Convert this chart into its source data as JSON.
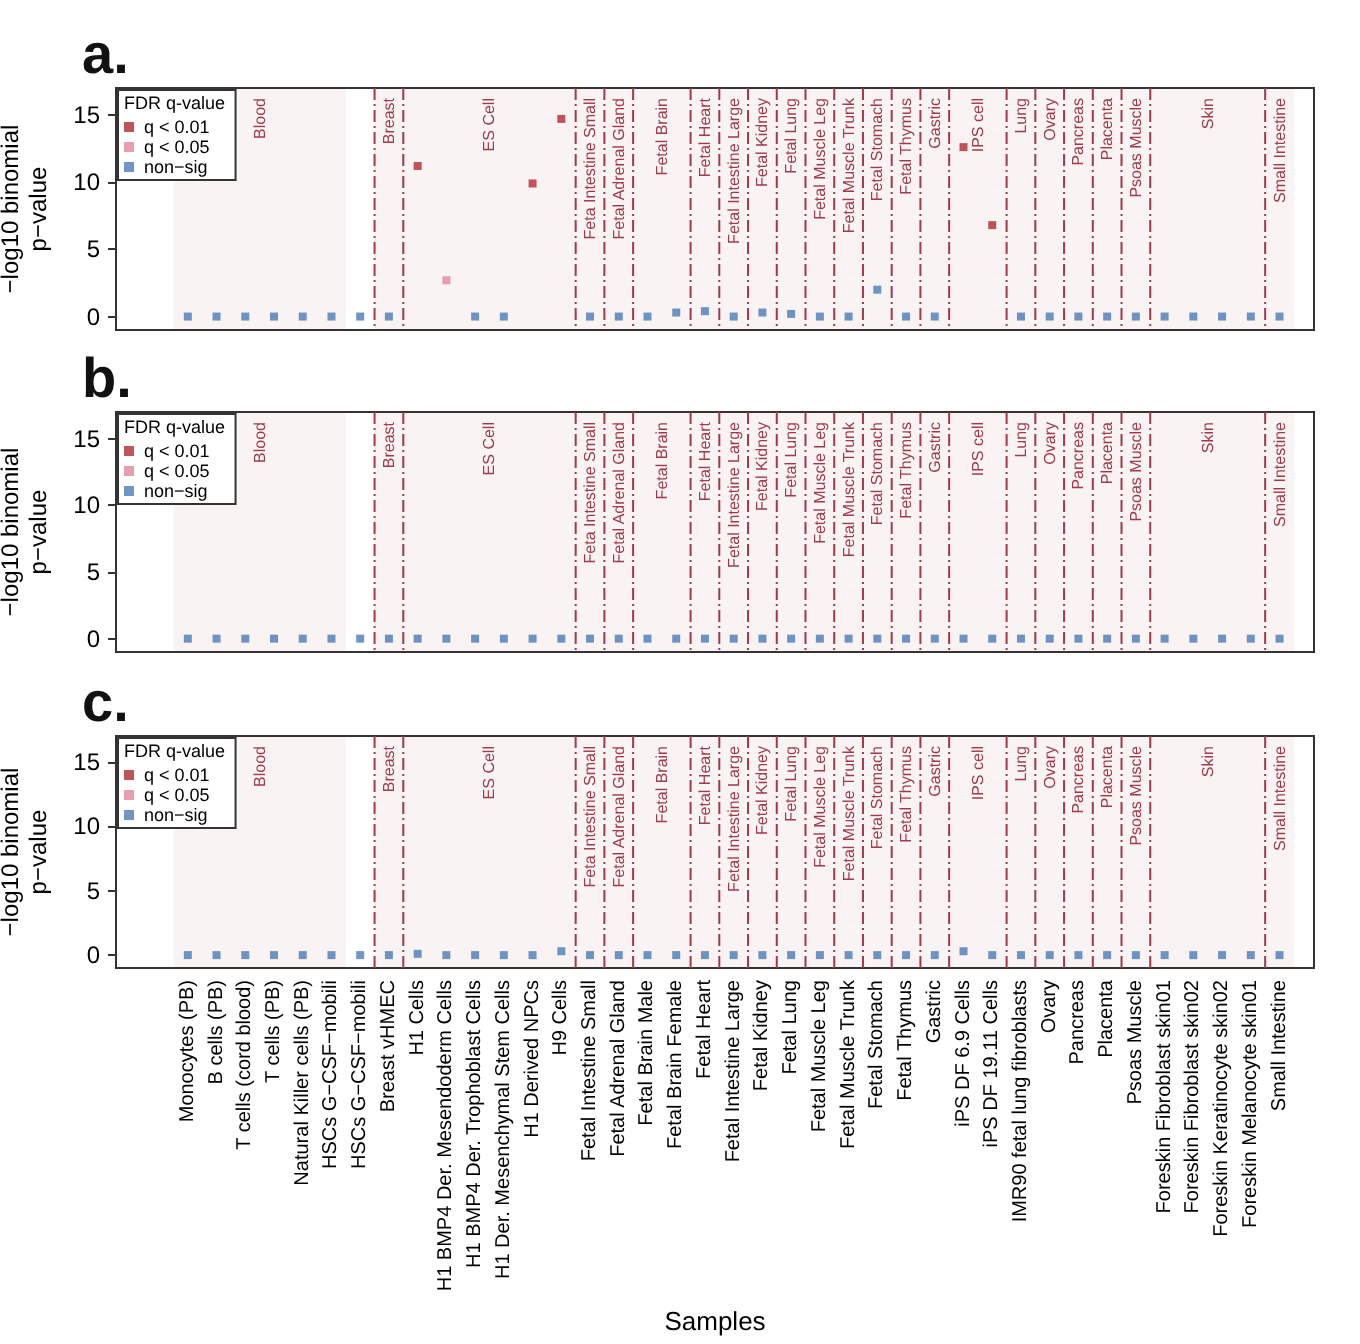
{
  "chart_data": [
    {
      "type": "scatter",
      "title": "a.",
      "ylabel": "−log10 binomial\np−value",
      "legend_title": "FDR q-value",
      "categories": [
        "Monocytes (PB)",
        "B cells (PB)",
        "T cells (cord blood)",
        "T cells (PB)",
        "Natural Killer cells (PB)",
        "HSCs G−CSF−mobili",
        "HSCs G−CSF−mobili",
        "Breast vHMEC",
        "H1 Cells",
        "H1 BMP4 Der. Mesendoderm Cells",
        "H1 BMP4 Der. Trophoblast Cells",
        "H1 Der. Mesenchymal Stem Cells",
        "H1 Derived NPCs",
        "H9 Cells",
        "Fetal Intestine Small",
        "Fetal Adrenal Gland",
        "Fetal Brain Male",
        "Fetal Brain Female",
        "Fetal Heart",
        "Fetal Intestine Large",
        "Fetal Kidney",
        "Fetal Lung",
        "Fetal Muscle Leg",
        "Fetal Muscle Trunk",
        "Fetal Stomach",
        "Fetal Thymus",
        "Gastric",
        "iPS DF 6.9 Cells",
        "iPS DF 19.11 Cells",
        "IMR90 fetal lung fibroblasts",
        "Ovary",
        "Pancreas",
        "Placenta",
        "Psoas Muscle",
        "Foreskin Fibroblast skin01",
        "Foreskin Fibroblast skin02",
        "Foreskin Keratinocyte skin02",
        "Foreskin Melanocyte skin01",
        "Small Intestine"
      ],
      "series": [
        {
          "name": "q < 0.01",
          "color": "#b02a30",
          "values": [
            null,
            null,
            null,
            null,
            null,
            null,
            null,
            null,
            11.2,
            null,
            null,
            null,
            9.9,
            14.7,
            null,
            null,
            null,
            null,
            null,
            null,
            null,
            null,
            null,
            null,
            null,
            null,
            null,
            12.6,
            6.8,
            null,
            null,
            null,
            null,
            null,
            null,
            null,
            null,
            null,
            null
          ]
        },
        {
          "name": "q < 0.05",
          "color": "#e0879b",
          "values": [
            null,
            null,
            null,
            null,
            null,
            null,
            null,
            null,
            null,
            2.7,
            null,
            null,
            null,
            null,
            null,
            null,
            null,
            null,
            null,
            null,
            null,
            null,
            null,
            null,
            null,
            null,
            null,
            null,
            null,
            null,
            null,
            null,
            null,
            null,
            null,
            null,
            null,
            null,
            null
          ]
        },
        {
          "name": "non−sig",
          "color": "#4a7ab5",
          "values": [
            0,
            0,
            0,
            0,
            0,
            0,
            0,
            0,
            null,
            null,
            0,
            0,
            null,
            null,
            0,
            0,
            0,
            0.3,
            0.4,
            0,
            0.3,
            0.2,
            0,
            0,
            2.0,
            0,
            0,
            null,
            null,
            0,
            0,
            0,
            0,
            0,
            0,
            0,
            0,
            0,
            0
          ]
        }
      ],
      "bands": [
        {
          "axis": "x",
          "from": "Monocytes (PB)",
          "to": "HSCs G−CSF−mobili",
          "label": "Blood",
          "color": "#9e3a4a"
        },
        {
          "axis": "x",
          "from": "Breast vHMEC",
          "to": "Breast vHMEC",
          "label": "Breast",
          "color": "#9e3a4a"
        },
        {
          "axis": "x",
          "from": "H1 Cells",
          "to": "H9 Cells",
          "label": "ES Cell",
          "color": "#9e3a4a"
        },
        {
          "axis": "x",
          "from": "Fetal Intestine Small",
          "to": "Fetal Intestine Small",
          "label": "Feta Intestine Small",
          "color": "#9e3a4a"
        },
        {
          "axis": "x",
          "from": "Fetal Adrenal Gland",
          "to": "Fetal Adrenal Gland",
          "label": "Fetal Adrenal Gland",
          "color": "#9e3a4a"
        },
        {
          "axis": "x",
          "from": "Fetal Brain Male",
          "to": "Fetal Brain Female",
          "label": "Fetal Brain",
          "color": "#9e3a4a"
        },
        {
          "axis": "x",
          "from": "Fetal Heart",
          "to": "Fetal Heart",
          "label": "Fetal Heart",
          "color": "#9e3a4a"
        },
        {
          "axis": "x",
          "from": "Fetal Intestine Large",
          "to": "Fetal Intestine Large",
          "label": "Fetal Intestine Large",
          "color": "#9e3a4a"
        },
        {
          "axis": "x",
          "from": "Fetal Kidney",
          "to": "Fetal Kidney",
          "label": "Fetal Kidney",
          "color": "#9e3a4a"
        },
        {
          "axis": "x",
          "from": "Fetal Lung",
          "to": "Fetal Lung",
          "label": "Fetal Lung",
          "color": "#9e3a4a"
        },
        {
          "axis": "x",
          "from": "Fetal Muscle Leg",
          "to": "Fetal Muscle Leg",
          "label": "Fetal Muscle Leg",
          "color": "#9e3a4a"
        },
        {
          "axis": "x",
          "from": "Fetal Muscle Trunk",
          "to": "Fetal Muscle Trunk",
          "label": "Fetal Muscle Trunk",
          "color": "#9e3a4a"
        },
        {
          "axis": "x",
          "from": "Fetal Stomach",
          "to": "Fetal Stomach",
          "label": "Fetal Stomach",
          "color": "#9e3a4a"
        },
        {
          "axis": "x",
          "from": "Fetal Thymus",
          "to": "Fetal Thymus",
          "label": "Fetal Thymus",
          "color": "#9e3a4a"
        },
        {
          "axis": "x",
          "from": "Gastric",
          "to": "Gastric",
          "label": "Gastric",
          "color": "#9e3a4a"
        },
        {
          "axis": "x",
          "from": "iPS DF 6.9 Cells",
          "to": "iPS DF 19.11 Cells",
          "label": "IPS cell",
          "color": "#9e3a4a"
        },
        {
          "axis": "x",
          "from": "IMR90 fetal lung fibroblasts",
          "to": "IMR90 fetal lung fibroblasts",
          "label": "Lung",
          "color": "#9e3a4a"
        },
        {
          "axis": "x",
          "from": "Ovary",
          "to": "Ovary",
          "label": "Ovary",
          "color": "#9e3a4a"
        },
        {
          "axis": "x",
          "from": "Pancreas",
          "to": "Pancreas",
          "label": "Pancreas",
          "color": "#9e3a4a"
        },
        {
          "axis": "x",
          "from": "Placenta",
          "to": "Placenta",
          "label": "Placenta",
          "color": "#9e3a4a"
        },
        {
          "axis": "x",
          "from": "Psoas Muscle",
          "to": "Psoas Muscle",
          "label": "Psoas Muscle",
          "color": "#9e3a4a"
        },
        {
          "axis": "x",
          "from": "Foreskin Fibroblast skin01",
          "to": "Foreskin Melanocyte skin01",
          "label": "Skin",
          "color": "#9e3a4a"
        },
        {
          "axis": "x",
          "from": "Small Intestine",
          "to": "Small Intestine",
          "label": "Small Intestine",
          "color": "#9e3a4a"
        }
      ],
      "ylim": [
        -1,
        17
      ],
      "yticks": [
        0,
        5,
        10,
        15
      ],
      "legend": "top left",
      "marker": "square",
      "tick_labels": "y"
    },
    {
      "type": "scatter",
      "title": "b.",
      "ylabel": "−log10 binomial\np−value",
      "legend_title": "FDR q-value",
      "categories": [
        "Monocytes (PB)",
        "B cells (PB)",
        "T cells (cord blood)",
        "T cells (PB)",
        "Natural Killer cells (PB)",
        "HSCs G−CSF−mobili",
        "HSCs G−CSF−mobili",
        "Breast vHMEC",
        "H1 Cells",
        "H1 BMP4 Der. Mesendoderm Cells",
        "H1 BMP4 Der. Trophoblast Cells",
        "H1 Der. Mesenchymal Stem Cells",
        "H1 Derived NPCs",
        "H9 Cells",
        "Fetal Intestine Small",
        "Fetal Adrenal Gland",
        "Fetal Brain Male",
        "Fetal Brain Female",
        "Fetal Heart",
        "Fetal Intestine Large",
        "Fetal Kidney",
        "Fetal Lung",
        "Fetal Muscle Leg",
        "Fetal Muscle Trunk",
        "Fetal Stomach",
        "Fetal Thymus",
        "Gastric",
        "iPS DF 6.9 Cells",
        "iPS DF 19.11 Cells",
        "IMR90 fetal lung fibroblasts",
        "Ovary",
        "Pancreas",
        "Placenta",
        "Psoas Muscle",
        "Foreskin Fibroblast skin01",
        "Foreskin Fibroblast skin02",
        "Foreskin Keratinocyte skin02",
        "Foreskin Melanocyte skin01",
        "Small Intestine"
      ],
      "series": [
        {
          "name": "q < 0.01",
          "color": "#b02a30",
          "values": [
            null,
            null,
            null,
            null,
            null,
            null,
            null,
            null,
            null,
            null,
            null,
            null,
            null,
            null,
            null,
            null,
            null,
            null,
            null,
            null,
            null,
            null,
            null,
            null,
            null,
            null,
            null,
            null,
            null,
            null,
            null,
            null,
            null,
            null,
            null,
            null,
            null,
            null,
            null
          ]
        },
        {
          "name": "q < 0.05",
          "color": "#e0879b",
          "values": [
            null,
            null,
            null,
            null,
            null,
            null,
            null,
            null,
            null,
            null,
            null,
            null,
            null,
            null,
            null,
            null,
            null,
            null,
            null,
            null,
            null,
            null,
            null,
            null,
            null,
            null,
            null,
            null,
            null,
            null,
            null,
            null,
            null,
            null,
            null,
            null,
            null,
            null,
            null
          ]
        },
        {
          "name": "non−sig",
          "color": "#4a7ab5",
          "values": [
            0,
            0,
            0,
            0,
            0,
            0,
            0,
            0,
            0,
            0,
            0,
            0,
            0,
            0,
            0,
            0,
            0,
            0,
            0,
            0,
            0,
            0,
            0,
            0,
            0,
            0,
            0,
            0,
            0,
            0,
            0,
            0,
            0,
            0,
            0,
            0,
            0,
            0,
            0
          ]
        }
      ],
      "bands": [
        {
          "axis": "x",
          "from": "Monocytes (PB)",
          "to": "HSCs G−CSF−mobili",
          "label": "Blood",
          "color": "#9e3a4a"
        },
        {
          "axis": "x",
          "from": "Breast vHMEC",
          "to": "Breast vHMEC",
          "label": "Breast",
          "color": "#9e3a4a"
        },
        {
          "axis": "x",
          "from": "H1 Cells",
          "to": "H9 Cells",
          "label": "ES Cell",
          "color": "#9e3a4a"
        },
        {
          "axis": "x",
          "from": "Fetal Intestine Small",
          "to": "Fetal Intestine Small",
          "label": "Feta Intestine Small",
          "color": "#9e3a4a"
        },
        {
          "axis": "x",
          "from": "Fetal Adrenal Gland",
          "to": "Fetal Adrenal Gland",
          "label": "Fetal Adrenal Gland",
          "color": "#9e3a4a"
        },
        {
          "axis": "x",
          "from": "Fetal Brain Male",
          "to": "Fetal Brain Female",
          "label": "Fetal Brain",
          "color": "#9e3a4a"
        },
        {
          "axis": "x",
          "from": "Fetal Heart",
          "to": "Fetal Heart",
          "label": "Fetal Heart",
          "color": "#9e3a4a"
        },
        {
          "axis": "x",
          "from": "Fetal Intestine Large",
          "to": "Fetal Intestine Large",
          "label": "Fetal Intestine Large",
          "color": "#9e3a4a"
        },
        {
          "axis": "x",
          "from": "Fetal Kidney",
          "to": "Fetal Kidney",
          "label": "Fetal Kidney",
          "color": "#9e3a4a"
        },
        {
          "axis": "x",
          "from": "Fetal Lung",
          "to": "Fetal Lung",
          "label": "Fetal Lung",
          "color": "#9e3a4a"
        },
        {
          "axis": "x",
          "from": "Fetal Muscle Leg",
          "to": "Fetal Muscle Leg",
          "label": "Fetal Muscle Leg",
          "color": "#9e3a4a"
        },
        {
          "axis": "x",
          "from": "Fetal Muscle Trunk",
          "to": "Fetal Muscle Trunk",
          "label": "Fetal Muscle Trunk",
          "color": "#9e3a4a"
        },
        {
          "axis": "x",
          "from": "Fetal Stomach",
          "to": "Fetal Stomach",
          "label": "Fetal Stomach",
          "color": "#9e3a4a"
        },
        {
          "axis": "x",
          "from": "Fetal Thymus",
          "to": "Fetal Thymus",
          "label": "Fetal Thymus",
          "color": "#9e3a4a"
        },
        {
          "axis": "x",
          "from": "Gastric",
          "to": "Gastric",
          "label": "Gastric",
          "color": "#9e3a4a"
        },
        {
          "axis": "x",
          "from": "iPS DF 6.9 Cells",
          "to": "iPS DF 19.11 Cells",
          "label": "IPS cell",
          "color": "#9e3a4a"
        },
        {
          "axis": "x",
          "from": "IMR90 fetal lung fibroblasts",
          "to": "IMR90 fetal lung fibroblasts",
          "label": "Lung",
          "color": "#9e3a4a"
        },
        {
          "axis": "x",
          "from": "Ovary",
          "to": "Ovary",
          "label": "Ovary",
          "color": "#9e3a4a"
        },
        {
          "axis": "x",
          "from": "Pancreas",
          "to": "Pancreas",
          "label": "Pancreas",
          "color": "#9e3a4a"
        },
        {
          "axis": "x",
          "from": "Placenta",
          "to": "Placenta",
          "label": "Placenta",
          "color": "#9e3a4a"
        },
        {
          "axis": "x",
          "from": "Psoas Muscle",
          "to": "Psoas Muscle",
          "label": "Psoas Muscle",
          "color": "#9e3a4a"
        },
        {
          "axis": "x",
          "from": "Foreskin Fibroblast skin01",
          "to": "Foreskin Melanocyte skin01",
          "label": "Skin",
          "color": "#9e3a4a"
        },
        {
          "axis": "x",
          "from": "Small Intestine",
          "to": "Small Intestine",
          "label": "Small Intestine",
          "color": "#9e3a4a"
        }
      ],
      "ylim": [
        -1,
        17
      ],
      "yticks": [
        0,
        5,
        10,
        15
      ],
      "legend": "top left",
      "marker": "square",
      "tick_labels": "y"
    },
    {
      "type": "scatter",
      "title": "c.",
      "ylabel": "−log10 binomial\np−value",
      "xlabel": "Samples",
      "legend_title": "FDR q-value",
      "categories": [
        "Monocytes (PB)",
        "B cells (PB)",
        "T cells (cord blood)",
        "T cells (PB)",
        "Natural Killer cells (PB)",
        "HSCs G−CSF−mobili",
        "HSCs G−CSF−mobili",
        "Breast vHMEC",
        "H1 Cells",
        "H1 BMP4 Der. Mesendoderm Cells",
        "H1 BMP4 Der. Trophoblast Cells",
        "H1 Der. Mesenchymal Stem Cells",
        "H1 Derived NPCs",
        "H9 Cells",
        "Fetal Intestine Small",
        "Fetal Adrenal Gland",
        "Fetal Brain Male",
        "Fetal Brain Female",
        "Fetal Heart",
        "Fetal Intestine Large",
        "Fetal Kidney",
        "Fetal Lung",
        "Fetal Muscle Leg",
        "Fetal Muscle Trunk",
        "Fetal Stomach",
        "Fetal Thymus",
        "Gastric",
        "iPS DF 6.9 Cells",
        "iPS DF 19.11 Cells",
        "IMR90 fetal lung fibroblasts",
        "Ovary",
        "Pancreas",
        "Placenta",
        "Psoas Muscle",
        "Foreskin Fibroblast skin01",
        "Foreskin Fibroblast skin02",
        "Foreskin Keratinocyte skin02",
        "Foreskin Melanocyte skin01",
        "Small Intestine"
      ],
      "series": [
        {
          "name": "q < 0.01",
          "color": "#b02a30",
          "values": [
            null,
            null,
            null,
            null,
            null,
            null,
            null,
            null,
            null,
            null,
            null,
            null,
            null,
            null,
            null,
            null,
            null,
            null,
            null,
            null,
            null,
            null,
            null,
            null,
            null,
            null,
            null,
            null,
            null,
            null,
            null,
            null,
            null,
            null,
            null,
            null,
            null,
            null,
            null
          ]
        },
        {
          "name": "q < 0.05",
          "color": "#e0879b",
          "values": [
            null,
            null,
            null,
            null,
            null,
            null,
            null,
            null,
            null,
            null,
            null,
            null,
            null,
            null,
            null,
            null,
            null,
            null,
            null,
            null,
            null,
            null,
            null,
            null,
            null,
            null,
            null,
            null,
            null,
            null,
            null,
            null,
            null,
            null,
            null,
            null,
            null,
            null,
            null
          ]
        },
        {
          "name": "non−sig",
          "color": "#4a7ab5",
          "values": [
            0,
            0,
            0,
            0,
            0,
            0,
            0,
            0,
            0.1,
            0,
            0,
            0,
            0,
            0.3,
            0,
            0,
            0,
            0,
            0,
            0,
            0,
            0,
            0,
            0,
            0,
            0,
            0,
            0.3,
            0,
            0,
            0,
            0,
            0,
            0,
            0,
            0,
            0,
            0,
            0
          ]
        }
      ],
      "bands": [
        {
          "axis": "x",
          "from": "Monocytes (PB)",
          "to": "HSCs G−CSF−mobili",
          "label": "Blood",
          "color": "#9e3a4a"
        },
        {
          "axis": "x",
          "from": "Breast vHMEC",
          "to": "Breast vHMEC",
          "label": "Breast",
          "color": "#9e3a4a"
        },
        {
          "axis": "x",
          "from": "H1 Cells",
          "to": "H9 Cells",
          "label": "ES Cell",
          "color": "#9e3a4a"
        },
        {
          "axis": "x",
          "from": "Fetal Intestine Small",
          "to": "Fetal Intestine Small",
          "label": "Feta Intestine Small",
          "color": "#9e3a4a"
        },
        {
          "axis": "x",
          "from": "Fetal Adrenal Gland",
          "to": "Fetal Adrenal Gland",
          "label": "Fetal Adrenal Gland",
          "color": "#9e3a4a"
        },
        {
          "axis": "x",
          "from": "Fetal Brain Male",
          "to": "Fetal Brain Female",
          "label": "Fetal Brain",
          "color": "#9e3a4a"
        },
        {
          "axis": "x",
          "from": "Fetal Heart",
          "to": "Fetal Heart",
          "label": "Fetal Heart",
          "color": "#9e3a4a"
        },
        {
          "axis": "x",
          "from": "Fetal Intestine Large",
          "to": "Fetal Intestine Large",
          "label": "Fetal Intestine Large",
          "color": "#9e3a4a"
        },
        {
          "axis": "x",
          "from": "Fetal Kidney",
          "to": "Fetal Kidney",
          "label": "Fetal Kidney",
          "color": "#9e3a4a"
        },
        {
          "axis": "x",
          "from": "Fetal Lung",
          "to": "Fetal Lung",
          "label": "Fetal Lung",
          "color": "#9e3a4a"
        },
        {
          "axis": "x",
          "from": "Fetal Muscle Leg",
          "to": "Fetal Muscle Leg",
          "label": "Fetal Muscle Leg",
          "color": "#9e3a4a"
        },
        {
          "axis": "x",
          "from": "Fetal Muscle Trunk",
          "to": "Fetal Muscle Trunk",
          "label": "Fetal Muscle Trunk",
          "color": "#9e3a4a"
        },
        {
          "axis": "x",
          "from": "Fetal Stomach",
          "to": "Fetal Stomach",
          "label": "Fetal Stomach",
          "color": "#9e3a4a"
        },
        {
          "axis": "x",
          "from": "Fetal Thymus",
          "to": "Fetal Thymus",
          "label": "Fetal Thymus",
          "color": "#9e3a4a"
        },
        {
          "axis": "x",
          "from": "Gastric",
          "to": "Gastric",
          "label": "Gastric",
          "color": "#9e3a4a"
        },
        {
          "axis": "x",
          "from": "iPS DF 6.9 Cells",
          "to": "iPS DF 19.11 Cells",
          "label": "IPS cell",
          "color": "#9e3a4a"
        },
        {
          "axis": "x",
          "from": "IMR90 fetal lung fibroblasts",
          "to": "IMR90 fetal lung fibroblasts",
          "label": "Lung",
          "color": "#9e3a4a"
        },
        {
          "axis": "x",
          "from": "Ovary",
          "to": "Ovary",
          "label": "Ovary",
          "color": "#9e3a4a"
        },
        {
          "axis": "x",
          "from": "Pancreas",
          "to": "Pancreas",
          "label": "Pancreas",
          "color": "#9e3a4a"
        },
        {
          "axis": "x",
          "from": "Placenta",
          "to": "Placenta",
          "label": "Placenta",
          "color": "#9e3a4a"
        },
        {
          "axis": "x",
          "from": "Psoas Muscle",
          "to": "Psoas Muscle",
          "label": "Psoas Muscle",
          "color": "#9e3a4a"
        },
        {
          "axis": "x",
          "from": "Foreskin Fibroblast skin01",
          "to": "Foreskin Melanocyte skin01",
          "label": "Skin",
          "color": "#9e3a4a"
        },
        {
          "axis": "x",
          "from": "Small Intestine",
          "to": "Small Intestine",
          "label": "Small Intestine",
          "color": "#9e3a4a"
        }
      ],
      "ylim": [
        -1,
        17
      ],
      "yticks": [
        0,
        5,
        10,
        15
      ],
      "legend": "top left",
      "marker": "square"
    }
  ]
}
